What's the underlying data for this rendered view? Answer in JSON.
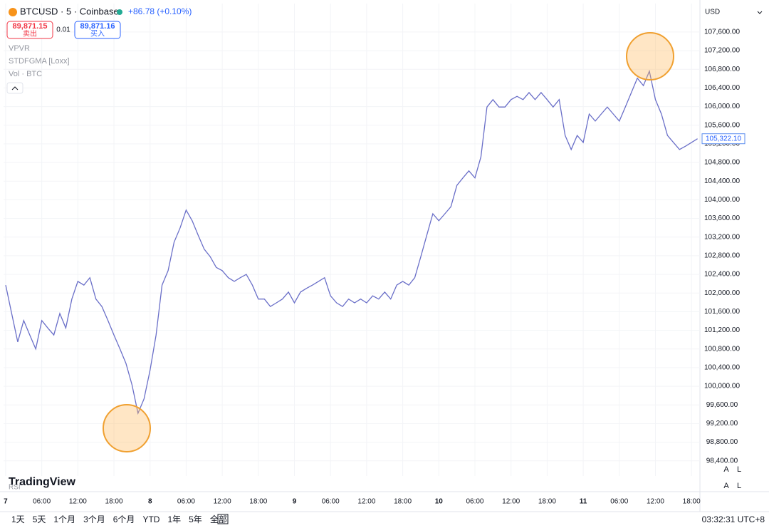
{
  "header": {
    "symbol": "BTCUSD · 5 · Coinbase",
    "change": "+86.78 (+0.10%)",
    "sell_price": "89,871.15",
    "sell_label": "卖出",
    "spread": "0.01",
    "buy_price": "89,871.16",
    "buy_label": "买入",
    "currency": "USD"
  },
  "indicators": [
    "VPVR",
    "STDFGMA [Loxx]",
    "Vol · BTC"
  ],
  "logo": "TradingView",
  "rsi_label": "RSI",
  "scale_buttons": [
    "A",
    "L"
  ],
  "ranges": [
    "1天",
    "5天",
    "1个月",
    "3个月",
    "6个月",
    "YTD",
    "1年",
    "5年",
    "全部"
  ],
  "clock": "03:32:31 UTC+8",
  "chart_data": {
    "type": "line",
    "last_price_label": "105,322.10",
    "grid": true,
    "xlim": [
      -0.35,
      115.4
    ],
    "ylim": [
      98075,
      108210
    ],
    "xticks": [
      {
        "value": 0,
        "label": "7"
      },
      {
        "value": 6,
        "label": "06:00"
      },
      {
        "value": 12,
        "label": "12:00"
      },
      {
        "value": 18,
        "label": "18:00"
      },
      {
        "value": 24,
        "label": "8"
      },
      {
        "value": 30,
        "label": "06:00"
      },
      {
        "value": 36,
        "label": "12:00"
      },
      {
        "value": 42,
        "label": "18:00"
      },
      {
        "value": 48,
        "label": "9"
      },
      {
        "value": 54,
        "label": "06:00"
      },
      {
        "value": 60,
        "label": "12:00"
      },
      {
        "value": 66,
        "label": "18:00"
      },
      {
        "value": 72,
        "label": "10"
      },
      {
        "value": 78,
        "label": "06:00"
      },
      {
        "value": 84,
        "label": "12:00"
      },
      {
        "value": 90,
        "label": "18:00"
      },
      {
        "value": 96,
        "label": "11"
      },
      {
        "value": 102,
        "label": "06:00"
      },
      {
        "value": 108,
        "label": "12:00"
      },
      {
        "value": 114,
        "label": "18:00"
      }
    ],
    "yticks": [
      {
        "value": 107600,
        "label": "107,600.00"
      },
      {
        "value": 107200,
        "label": "107,200.00"
      },
      {
        "value": 106800,
        "label": "106,800.00"
      },
      {
        "value": 106400,
        "label": "106,400.00"
      },
      {
        "value": 106000,
        "label": "106,000.00"
      },
      {
        "value": 105600,
        "label": "105,600.00"
      },
      {
        "value": 105200,
        "label": "105,200.00"
      },
      {
        "value": 104800,
        "label": "104,800.00"
      },
      {
        "value": 104400,
        "label": "104,400.00"
      },
      {
        "value": 104000,
        "label": "104,000.00"
      },
      {
        "value": 103600,
        "label": "103,600.00"
      },
      {
        "value": 103200,
        "label": "103,200.00"
      },
      {
        "value": 102800,
        "label": "102,800.00"
      },
      {
        "value": 102400,
        "label": "102,400.00"
      },
      {
        "value": 102000,
        "label": "102,000.00"
      },
      {
        "value": 101600,
        "label": "101,600.00"
      },
      {
        "value": 101200,
        "label": "101,200.00"
      },
      {
        "value": 100800,
        "label": "100,800.00"
      },
      {
        "value": 100400,
        "label": "100,400.00"
      },
      {
        "value": 100000,
        "label": "100,000.00"
      },
      {
        "value": 99600,
        "label": "99,600.00"
      },
      {
        "value": 99200,
        "label": "99,200.00"
      },
      {
        "value": 98800,
        "label": "98,800.00"
      },
      {
        "value": 98400,
        "label": "98,400.00"
      }
    ],
    "x": [
      0,
      1,
      2,
      3,
      4,
      5,
      6,
      7,
      8,
      9,
      10,
      11,
      12,
      13,
      14,
      15,
      16,
      17,
      18,
      19,
      20,
      21,
      22,
      23,
      24,
      25,
      26,
      27,
      28,
      29,
      30,
      31,
      32,
      33,
      34,
      35,
      36,
      37,
      38,
      39,
      40,
      41,
      42,
      43,
      44,
      45,
      46,
      47,
      48,
      49,
      50,
      51,
      52,
      53,
      54,
      55,
      56,
      57,
      58,
      59,
      60,
      61,
      62,
      63,
      64,
      65,
      66,
      67,
      68,
      69,
      70,
      71,
      72,
      73,
      74,
      75,
      76,
      77,
      78,
      79,
      80,
      81,
      82,
      83,
      84,
      85,
      86,
      87,
      88,
      89,
      90,
      91,
      92,
      93,
      94,
      95,
      96,
      97,
      98,
      99,
      100,
      101,
      102,
      103,
      104,
      105,
      106,
      107,
      108,
      109,
      110,
      111,
      112,
      113,
      114,
      115
    ],
    "series": [
      {
        "color": "#6a6fc8",
        "values": [
          102170,
          101560,
          100950,
          101410,
          101100,
          100800,
          101410,
          101250,
          101100,
          101560,
          101250,
          101870,
          102250,
          102170,
          102330,
          101870,
          101710,
          101410,
          101100,
          100800,
          100490,
          100030,
          99420,
          99730,
          100340,
          101100,
          102170,
          102480,
          103090,
          103400,
          103780,
          103550,
          103240,
          102940,
          102780,
          102550,
          102480,
          102330,
          102250,
          102330,
          102400,
          102170,
          101870,
          101870,
          101710,
          101790,
          101870,
          102020,
          101790,
          102020,
          102100,
          102170,
          102250,
          102330,
          101940,
          101790,
          101710,
          101870,
          101790,
          101870,
          101790,
          101940,
          101870,
          102020,
          101870,
          102170,
          102250,
          102170,
          102330,
          102780,
          103240,
          103700,
          103550,
          103700,
          103850,
          104310,
          104470,
          104620,
          104470,
          104920,
          105990,
          106150,
          105990,
          105990,
          106150,
          106220,
          106150,
          106300,
          106150,
          106300,
          106150,
          105990,
          106150,
          105380,
          105080,
          105380,
          105230,
          105840,
          105690,
          105840,
          105990,
          105840,
          105690,
          105990,
          106300,
          106610,
          106450,
          106760,
          106150,
          105840,
          105380,
          105230,
          105080,
          105150,
          105230,
          105310
        ]
      }
    ]
  }
}
